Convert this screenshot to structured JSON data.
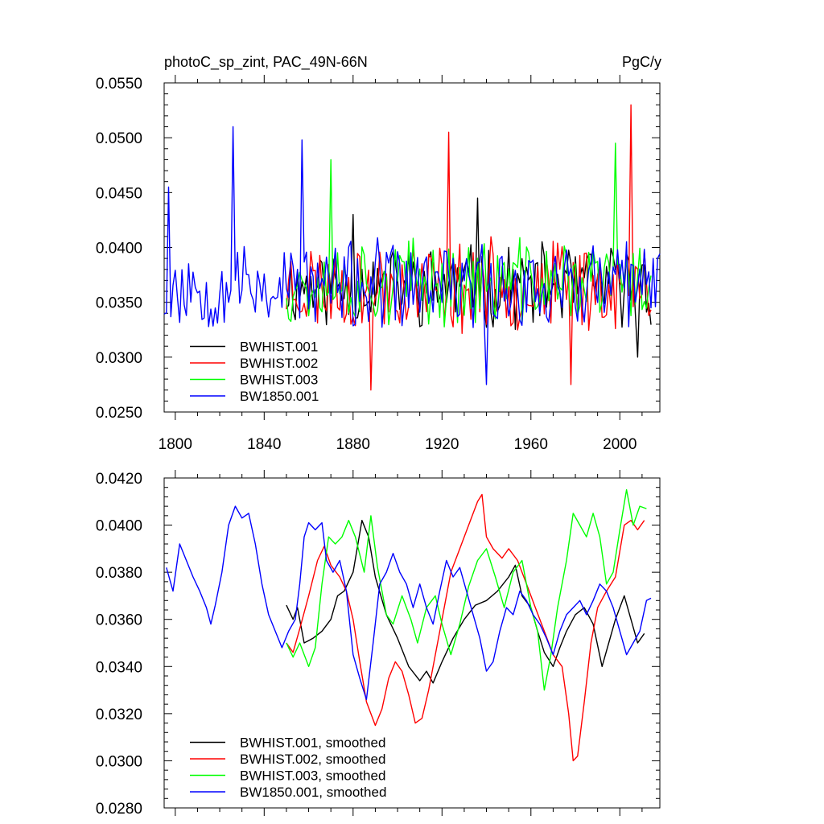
{
  "chart_data": [
    {
      "type": "line",
      "title": "photoC_sp_zint, PAC_49N-66N",
      "units": "PgC/y",
      "xlim": [
        1795,
        2018
      ],
      "ylim": [
        0.025,
        0.055
      ],
      "xticks": [
        1800,
        1840,
        1880,
        1920,
        1960,
        2000
      ],
      "yticks": [
        "0.0250",
        "0.0300",
        "0.0350",
        "0.0400",
        "0.0450",
        "0.0500",
        "0.0550"
      ],
      "legend_position": "bottom-left",
      "series": [
        {
          "name": "BWHIST.001",
          "color": "#000000",
          "start": 1850,
          "end": 2014,
          "mean": 0.0365,
          "amp": 0.0032,
          "seed": 11,
          "keypoints": [
            [
              1880,
              0.043
            ],
            [
              1936,
              0.0445
            ],
            [
              2008,
              0.03
            ]
          ]
        },
        {
          "name": "BWHIST.002",
          "color": "#ff0000",
          "start": 1850,
          "end": 2014,
          "mean": 0.0365,
          "amp": 0.0036,
          "seed": 23,
          "keypoints": [
            [
              1888,
              0.027
            ],
            [
              1923,
              0.0505
            ],
            [
              1978,
              0.0275
            ],
            [
              2005,
              0.053
            ]
          ]
        },
        {
          "name": "BWHIST.003",
          "color": "#00ff00",
          "start": 1850,
          "end": 2014,
          "mean": 0.0368,
          "amp": 0.0034,
          "seed": 37,
          "keypoints": [
            [
              1870,
              0.048
            ],
            [
              1998,
              0.0495
            ]
          ]
        },
        {
          "name": "BW1850.001",
          "color": "#0000ff",
          "start": 1795,
          "end": 2018,
          "mean": 0.0365,
          "amp": 0.0035,
          "seed": 53,
          "keypoints": [
            [
              1797,
              0.0455
            ],
            [
              1826,
              0.051
            ],
            [
              1857,
              0.0498
            ],
            [
              1940,
              0.0275
            ]
          ]
        }
      ]
    },
    {
      "type": "line",
      "title": "",
      "xlim": [
        1795,
        2018
      ],
      "ylim": [
        0.028,
        0.042
      ],
      "yticks": [
        "0.0280",
        "0.0300",
        "0.0320",
        "0.0340",
        "0.0360",
        "0.0380",
        "0.0400",
        "0.0420"
      ],
      "legend_position": "bottom-left",
      "series": [
        {
          "name": "BWHIST.001, smoothed",
          "color": "#000000",
          "points": [
            [
              1850,
              0.0366
            ],
            [
              1853,
              0.036
            ],
            [
              1855,
              0.0365
            ],
            [
              1858,
              0.035
            ],
            [
              1862,
              0.0352
            ],
            [
              1866,
              0.0355
            ],
            [
              1870,
              0.036
            ],
            [
              1873,
              0.037
            ],
            [
              1876,
              0.0372
            ],
            [
              1880,
              0.038
            ],
            [
              1884,
              0.0402
            ],
            [
              1887,
              0.0395
            ],
            [
              1890,
              0.0378
            ],
            [
              1895,
              0.0362
            ],
            [
              1900,
              0.0352
            ],
            [
              1905,
              0.034
            ],
            [
              1910,
              0.0334
            ],
            [
              1913,
              0.0338
            ],
            [
              1916,
              0.0333
            ],
            [
              1920,
              0.0342
            ],
            [
              1925,
              0.0352
            ],
            [
              1930,
              0.036
            ],
            [
              1935,
              0.0366
            ],
            [
              1940,
              0.0368
            ],
            [
              1945,
              0.0372
            ],
            [
              1950,
              0.0378
            ],
            [
              1953,
              0.0383
            ],
            [
              1956,
              0.037
            ],
            [
              1960,
              0.0365
            ],
            [
              1963,
              0.0355
            ],
            [
              1966,
              0.0346
            ],
            [
              1970,
              0.034
            ],
            [
              1973,
              0.0348
            ],
            [
              1976,
              0.0355
            ],
            [
              1980,
              0.0362
            ],
            [
              1984,
              0.0365
            ],
            [
              1988,
              0.0358
            ],
            [
              1992,
              0.034
            ],
            [
              1995,
              0.035
            ],
            [
              1998,
              0.036
            ],
            [
              2002,
              0.037
            ],
            [
              2005,
              0.036
            ],
            [
              2008,
              0.035
            ],
            [
              2011,
              0.0354
            ]
          ]
        },
        {
          "name": "BWHIST.002, smoothed",
          "color": "#ff0000",
          "points": [
            [
              1850,
              0.035
            ],
            [
              1853,
              0.0346
            ],
            [
              1856,
              0.0356
            ],
            [
              1860,
              0.037
            ],
            [
              1864,
              0.0385
            ],
            [
              1867,
              0.0391
            ],
            [
              1870,
              0.0383
            ],
            [
              1874,
              0.0378
            ],
            [
              1877,
              0.0372
            ],
            [
              1880,
              0.036
            ],
            [
              1883,
              0.0342
            ],
            [
              1886,
              0.0325
            ],
            [
              1890,
              0.0315
            ],
            [
              1893,
              0.0322
            ],
            [
              1896,
              0.0335
            ],
            [
              1899,
              0.0342
            ],
            [
              1902,
              0.0338
            ],
            [
              1905,
              0.0328
            ],
            [
              1908,
              0.0316
            ],
            [
              1911,
              0.0318
            ],
            [
              1914,
              0.033
            ],
            [
              1917,
              0.0345
            ],
            [
              1920,
              0.036
            ],
            [
              1924,
              0.038
            ],
            [
              1928,
              0.039
            ],
            [
              1932,
              0.04
            ],
            [
              1936,
              0.041
            ],
            [
              1938,
              0.0413
            ],
            [
              1940,
              0.0395
            ],
            [
              1943,
              0.039
            ],
            [
              1947,
              0.0386
            ],
            [
              1950,
              0.039
            ],
            [
              1954,
              0.0385
            ],
            [
              1958,
              0.0375
            ],
            [
              1962,
              0.0365
            ],
            [
              1966,
              0.0355
            ],
            [
              1970,
              0.0345
            ],
            [
              1974,
              0.034
            ],
            [
              1977,
              0.032
            ],
            [
              1979,
              0.03
            ],
            [
              1981,
              0.0302
            ],
            [
              1984,
              0.0325
            ],
            [
              1987,
              0.035
            ],
            [
              1990,
              0.0365
            ],
            [
              1994,
              0.0372
            ],
            [
              1998,
              0.0378
            ],
            [
              2002,
              0.04
            ],
            [
              2005,
              0.0402
            ],
            [
              2008,
              0.0398
            ],
            [
              2011,
              0.0402
            ]
          ]
        },
        {
          "name": "BWHIST.003, smoothed",
          "color": "#00ff00",
          "points": [
            [
              1850,
              0.035
            ],
            [
              1853,
              0.0344
            ],
            [
              1856,
              0.035
            ],
            [
              1860,
              0.034
            ],
            [
              1863,
              0.0348
            ],
            [
              1866,
              0.0375
            ],
            [
              1869,
              0.0395
            ],
            [
              1872,
              0.0392
            ],
            [
              1875,
              0.0395
            ],
            [
              1878,
              0.0402
            ],
            [
              1881,
              0.0395
            ],
            [
              1885,
              0.038
            ],
            [
              1888,
              0.0404
            ],
            [
              1891,
              0.0382
            ],
            [
              1895,
              0.0362
            ],
            [
              1898,
              0.0358
            ],
            [
              1902,
              0.037
            ],
            [
              1906,
              0.036
            ],
            [
              1909,
              0.035
            ],
            [
              1913,
              0.0365
            ],
            [
              1917,
              0.037
            ],
            [
              1920,
              0.0358
            ],
            [
              1924,
              0.0345
            ],
            [
              1928,
              0.0358
            ],
            [
              1932,
              0.0374
            ],
            [
              1936,
              0.0385
            ],
            [
              1940,
              0.039
            ],
            [
              1944,
              0.0378
            ],
            [
              1948,
              0.0365
            ],
            [
              1952,
              0.038
            ],
            [
              1956,
              0.0385
            ],
            [
              1960,
              0.0365
            ],
            [
              1963,
              0.0355
            ],
            [
              1966,
              0.033
            ],
            [
              1969,
              0.0345
            ],
            [
              1972,
              0.0365
            ],
            [
              1976,
              0.0385
            ],
            [
              1979,
              0.0405
            ],
            [
              1982,
              0.04
            ],
            [
              1985,
              0.0395
            ],
            [
              1988,
              0.0405
            ],
            [
              1991,
              0.0395
            ],
            [
              1994,
              0.0375
            ],
            [
              1997,
              0.038
            ],
            [
              2000,
              0.0398
            ],
            [
              2003,
              0.0415
            ],
            [
              2006,
              0.04
            ],
            [
              2009,
              0.0408
            ],
            [
              2012,
              0.0407
            ]
          ]
        },
        {
          "name": "BW1850.001, smoothed",
          "color": "#0000ff",
          "points": [
            [
              1796,
              0.0382
            ],
            [
              1799,
              0.0372
            ],
            [
              1802,
              0.0392
            ],
            [
              1805,
              0.0385
            ],
            [
              1808,
              0.0378
            ],
            [
              1811,
              0.0372
            ],
            [
              1814,
              0.0365
            ],
            [
              1816,
              0.0358
            ],
            [
              1818,
              0.0366
            ],
            [
              1821,
              0.038
            ],
            [
              1824,
              0.04
            ],
            [
              1827,
              0.0408
            ],
            [
              1830,
              0.0403
            ],
            [
              1833,
              0.0405
            ],
            [
              1836,
              0.0392
            ],
            [
              1839,
              0.0375
            ],
            [
              1842,
              0.0362
            ],
            [
              1845,
              0.0355
            ],
            [
              1848,
              0.0348
            ],
            [
              1851,
              0.0355
            ],
            [
              1854,
              0.036
            ],
            [
              1856,
              0.0375
            ],
            [
              1858,
              0.0395
            ],
            [
              1860,
              0.0401
            ],
            [
              1863,
              0.0398
            ],
            [
              1866,
              0.0401
            ],
            [
              1868,
              0.0385
            ],
            [
              1871,
              0.038
            ],
            [
              1874,
              0.0385
            ],
            [
              1877,
              0.0372
            ],
            [
              1880,
              0.0345
            ],
            [
              1883,
              0.0335
            ],
            [
              1886,
              0.0326
            ],
            [
              1889,
              0.035
            ],
            [
              1892,
              0.0375
            ],
            [
              1895,
              0.038
            ],
            [
              1898,
              0.0388
            ],
            [
              1901,
              0.038
            ],
            [
              1904,
              0.0375
            ],
            [
              1907,
              0.0365
            ],
            [
              1910,
              0.0375
            ],
            [
              1913,
              0.0365
            ],
            [
              1916,
              0.0358
            ],
            [
              1919,
              0.0372
            ],
            [
              1922,
              0.0385
            ],
            [
              1925,
              0.0378
            ],
            [
              1928,
              0.0382
            ],
            [
              1931,
              0.0372
            ],
            [
              1934,
              0.0362
            ],
            [
              1937,
              0.0352
            ],
            [
              1940,
              0.0338
            ],
            [
              1943,
              0.0342
            ],
            [
              1946,
              0.0355
            ],
            [
              1949,
              0.0365
            ],
            [
              1952,
              0.0362
            ],
            [
              1955,
              0.0372
            ],
            [
              1958,
              0.0368
            ],
            [
              1961,
              0.0362
            ],
            [
              1964,
              0.0358
            ],
            [
              1967,
              0.0352
            ],
            [
              1970,
              0.0345
            ],
            [
              1973,
              0.0355
            ],
            [
              1976,
              0.0362
            ],
            [
              1979,
              0.0365
            ],
            [
              1982,
              0.0368
            ],
            [
              1985,
              0.0362
            ],
            [
              1988,
              0.0368
            ],
            [
              1991,
              0.0375
            ],
            [
              1994,
              0.0372
            ],
            [
              1997,
              0.0365
            ],
            [
              2000,
              0.0355
            ],
            [
              2003,
              0.0345
            ],
            [
              2006,
              0.035
            ],
            [
              2009,
              0.0355
            ],
            [
              2012,
              0.0368
            ],
            [
              2014,
              0.0369
            ]
          ]
        }
      ]
    }
  ]
}
